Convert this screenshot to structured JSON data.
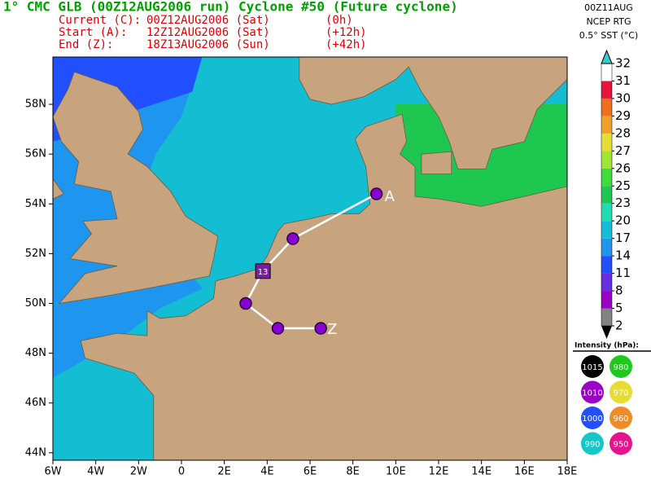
{
  "header": {
    "title": "1° CMC GLB (00Z12AUG2006 run) Cyclone #50 (Future cyclone)",
    "lines": [
      [
        "Current (C):",
        "00Z12AUG2006 (Sat)",
        "(0h)"
      ],
      [
        "Start (A):",
        "12Z12AUG2006 (Sat)",
        "(+12h)"
      ],
      [
        "End (Z):",
        "18Z13AUG2006 (Sun)",
        "(+42h)"
      ]
    ]
  },
  "colorbar": {
    "lines": [
      "00Z11AUG",
      "NCEP RTG",
      "0.5° SST (°C)"
    ],
    "levels": [
      2,
      5,
      8,
      11,
      14,
      17,
      20,
      23,
      25,
      26,
      27,
      28,
      29,
      30,
      31,
      32
    ],
    "colors": [
      "#828282",
      "#9a00c8",
      "#6a2ee0",
      "#2050ff",
      "#1e96f0",
      "#14beda",
      "#1edcb4",
      "#1ec850",
      "#3cdc3c",
      "#a0e632",
      "#e6dc32",
      "#f0a028",
      "#f06e1e",
      "#e6143c",
      "#ffffff"
    ]
  },
  "intensity": {
    "title": "Intensity (hPa):",
    "items": [
      {
        "label": "1015",
        "color": "#000000"
      },
      {
        "label": "980",
        "color": "#1ec81e"
      },
      {
        "label": "1010",
        "color": "#9a00c8"
      },
      {
        "label": "970",
        "color": "#e6dc32"
      },
      {
        "label": "1000",
        "color": "#2050ff"
      },
      {
        "label": "960",
        "color": "#f08c28"
      },
      {
        "label": "990",
        "color": "#14c8c8"
      },
      {
        "label": "950",
        "color": "#e6148c"
      }
    ]
  },
  "axes": {
    "xlim": [
      -6,
      18
    ],
    "ylim": [
      43.7,
      59.9
    ],
    "xticks": [
      {
        "value": -6,
        "label": "6W"
      },
      {
        "value": -4,
        "label": "4W"
      },
      {
        "value": -2,
        "label": "2W"
      },
      0,
      {
        "value": 2,
        "label": "2E"
      },
      {
        "value": 4,
        "label": "4E"
      },
      {
        "value": 6,
        "label": "6E"
      },
      {
        "value": 8,
        "label": "8E"
      },
      {
        "value": 10,
        "label": "10E"
      },
      {
        "value": 12,
        "label": "12E"
      },
      {
        "value": 14,
        "label": "14E"
      },
      {
        "value": 16,
        "label": "16E"
      },
      {
        "value": 18,
        "label": "18E"
      }
    ],
    "yticks": [
      {
        "value": 44,
        "label": "44N"
      },
      {
        "value": 46,
        "label": "46N"
      },
      {
        "value": 48,
        "label": "48N"
      },
      {
        "value": 50,
        "label": "50N"
      },
      {
        "value": 52,
        "label": "52N"
      },
      {
        "value": 54,
        "label": "54N"
      },
      {
        "value": 56,
        "label": "56N"
      },
      {
        "value": 58,
        "label": "58N"
      }
    ]
  },
  "track": {
    "points": [
      {
        "lon": 9.1,
        "lat": 54.4
      },
      {
        "lon": 5.2,
        "lat": 52.6
      },
      {
        "lon": 3.8,
        "lat": 51.3
      },
      {
        "lon": 3.0,
        "lat": 50.0
      },
      {
        "lon": 4.5,
        "lat": 49.0
      },
      {
        "lon": 6.5,
        "lat": 49.0
      }
    ],
    "marker": {
      "index": 2,
      "label": "13"
    },
    "start_label": "A",
    "end_label": "Z"
  }
}
